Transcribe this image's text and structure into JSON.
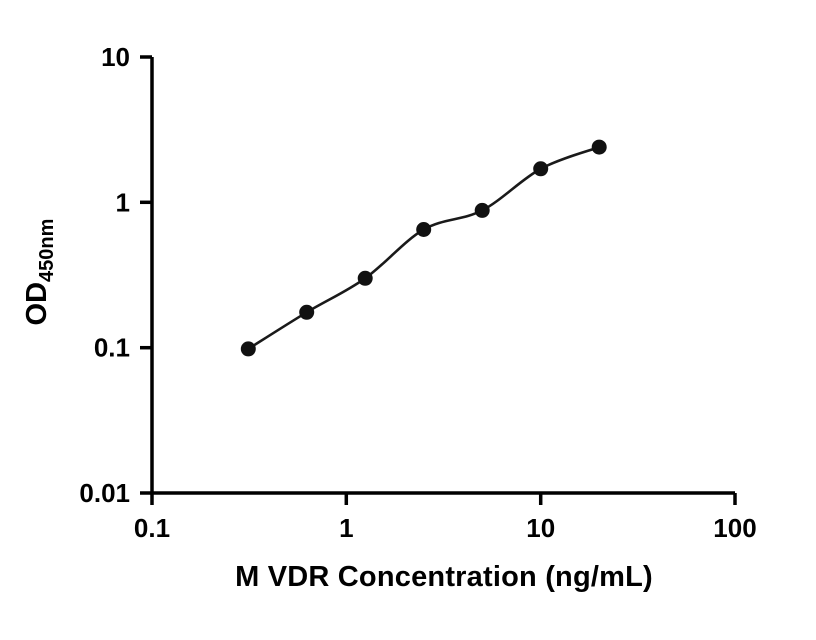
{
  "figure": {
    "background_color": "#ffffff",
    "axis_color": "#000000",
    "curve_color": "#1a1a1a",
    "marker_color": "#111111"
  },
  "chart_data": {
    "type": "scatter",
    "subtype": "ELISA standard curve with smooth fit line",
    "title": "",
    "xlabel": "M VDR Concentration (ng/mL)",
    "ylabel_main": "OD",
    "ylabel_sub": "450nm",
    "x_scale": "log10",
    "y_scale": "log10",
    "xlim": [
      0.1,
      100
    ],
    "ylim": [
      0.01,
      10
    ],
    "x_tick_values": [
      0.1,
      1,
      10,
      100
    ],
    "x_tick_labels": [
      "0.1",
      "1",
      "10",
      "100"
    ],
    "y_tick_values": [
      10,
      1,
      0.1,
      0.01
    ],
    "y_tick_labels": [
      "10",
      "1",
      "0.1",
      "0.01"
    ],
    "grid": false,
    "legend": "none",
    "series": [
      {
        "name": "standard-curve",
        "marker": "filled-circle",
        "line_style": "smooth-fit",
        "x": [
          0.313,
          0.625,
          1.25,
          2.5,
          5,
          10,
          20
        ],
        "y": [
          0.098,
          0.175,
          0.3,
          0.65,
          0.88,
          1.7,
          2.4
        ]
      }
    ]
  }
}
